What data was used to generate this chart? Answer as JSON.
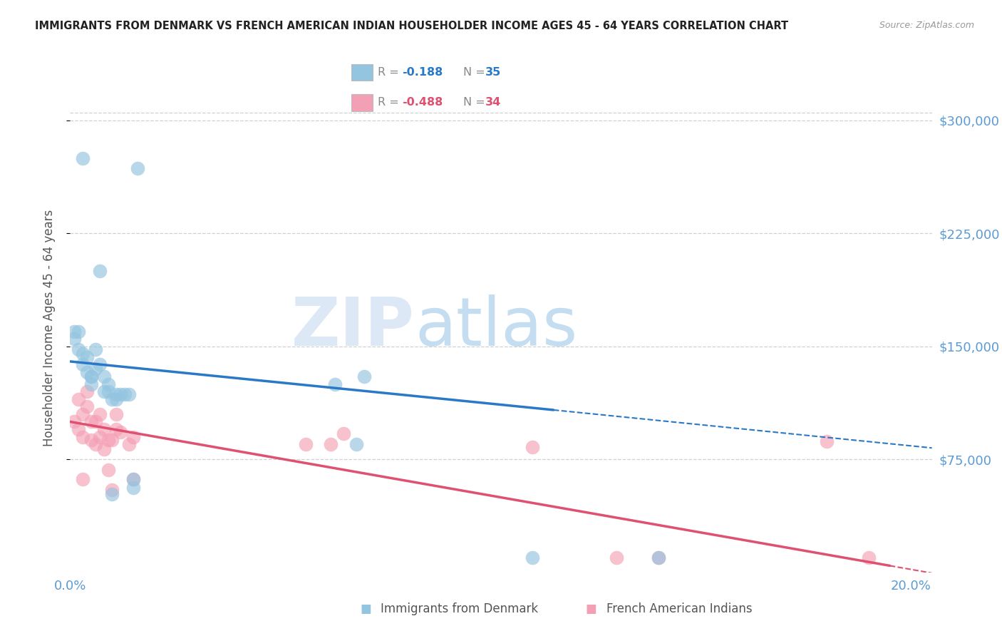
{
  "title": "IMMIGRANTS FROM DENMARK VS FRENCH AMERICAN INDIAN HOUSEHOLDER INCOME AGES 45 - 64 YEARS CORRELATION CHART",
  "source": "Source: ZipAtlas.com",
  "ylabel": "Householder Income Ages 45 - 64 years",
  "ytick_values": [
    75000,
    150000,
    225000,
    300000
  ],
  "ytick_labels": [
    "$75,000",
    "$150,000",
    "$225,000",
    "$300,000"
  ],
  "xlim": [
    0.0,
    0.205
  ],
  "ylim": [
    0,
    325000
  ],
  "color1": "#93c4e0",
  "color2": "#f4a0b4",
  "line_color1": "#2979c7",
  "line_color2": "#e05070",
  "R1": -0.188,
  "N1": 35,
  "R2": -0.488,
  "N2": 34,
  "legend_label1": "Immigrants from Denmark",
  "legend_label2": "French American Indians",
  "title_fontsize": 10.5,
  "source_fontsize": 9,
  "denmark_x": [
    0.001,
    0.001,
    0.002,
    0.002,
    0.003,
    0.003,
    0.004,
    0.004,
    0.005,
    0.005,
    0.005,
    0.006,
    0.006,
    0.007,
    0.007,
    0.008,
    0.008,
    0.009,
    0.009,
    0.01,
    0.011,
    0.011,
    0.012,
    0.013,
    0.014,
    0.015,
    0.016,
    0.063,
    0.068,
    0.07,
    0.11,
    0.14,
    0.003,
    0.01,
    0.015
  ],
  "denmark_y": [
    155000,
    160000,
    160000,
    148000,
    145000,
    138000,
    133000,
    143000,
    130000,
    125000,
    130000,
    135000,
    148000,
    138000,
    200000,
    120000,
    130000,
    120000,
    125000,
    115000,
    115000,
    118000,
    118000,
    118000,
    118000,
    56000,
    268000,
    125000,
    85000,
    130000,
    10000,
    10000,
    275000,
    52000,
    62000
  ],
  "french_indian_x": [
    0.001,
    0.002,
    0.002,
    0.003,
    0.003,
    0.004,
    0.004,
    0.005,
    0.005,
    0.006,
    0.006,
    0.007,
    0.007,
    0.008,
    0.008,
    0.009,
    0.009,
    0.01,
    0.01,
    0.011,
    0.011,
    0.012,
    0.014,
    0.015,
    0.015,
    0.056,
    0.062,
    0.065,
    0.11,
    0.13,
    0.14,
    0.18,
    0.19,
    0.003
  ],
  "french_indian_y": [
    100000,
    115000,
    95000,
    105000,
    90000,
    120000,
    110000,
    100000,
    88000,
    100000,
    85000,
    105000,
    90000,
    95000,
    82000,
    88000,
    68000,
    88000,
    55000,
    105000,
    95000,
    93000,
    85000,
    90000,
    62000,
    85000,
    85000,
    92000,
    83000,
    10000,
    10000,
    87000,
    10000,
    62000
  ],
  "line1_x_solid_end": 0.115,
  "line1_x_dash_end": 0.205,
  "line2_x_solid_end": 0.195,
  "line2_x_dash_end": 0.205,
  "grid_color": "#d0d0d0",
  "watermark_color_zip": "#dce8f5",
  "watermark_color_atlas": "#c5ddf0"
}
